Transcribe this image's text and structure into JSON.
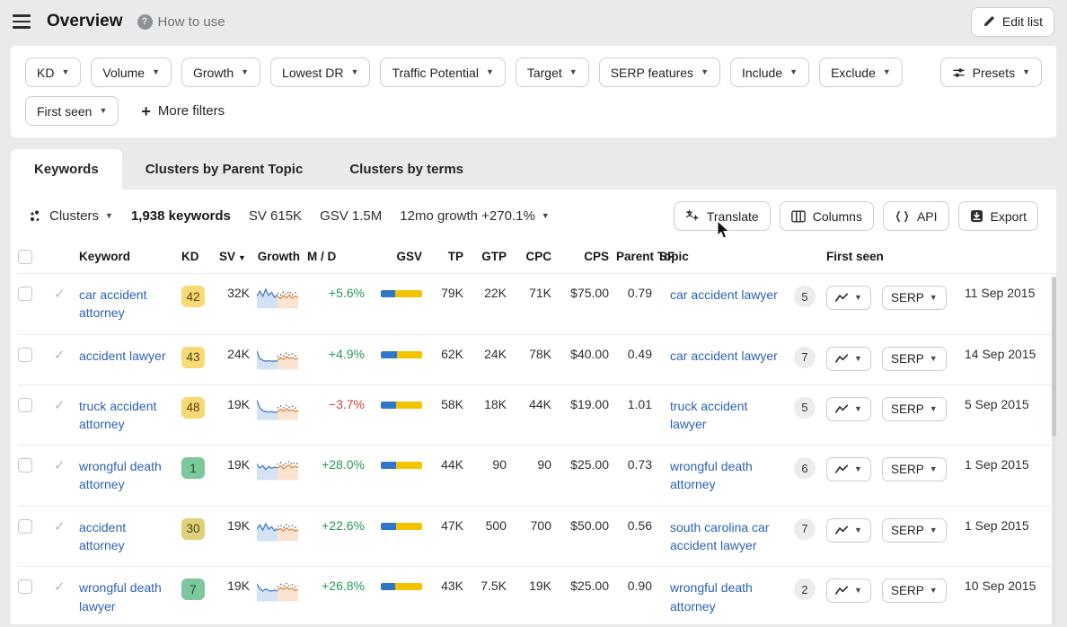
{
  "header": {
    "title": "Overview",
    "help_label": "How to use",
    "edit_list_label": "Edit list"
  },
  "filters": {
    "row1": [
      {
        "label": "KD"
      },
      {
        "label": "Volume"
      },
      {
        "label": "Growth"
      },
      {
        "label": "Lowest DR"
      },
      {
        "label": "Traffic Potential"
      },
      {
        "label": "Target"
      },
      {
        "label": "SERP features"
      },
      {
        "label": "Include"
      },
      {
        "label": "Exclude"
      }
    ],
    "presets_label": "Presets",
    "row2": [
      {
        "label": "First seen"
      }
    ],
    "more_filters_label": "More filters"
  },
  "tabs": [
    {
      "label": "Keywords",
      "active": true
    },
    {
      "label": "Clusters by Parent Topic",
      "active": false
    },
    {
      "label": "Clusters by terms",
      "active": false
    }
  ],
  "toolbar": {
    "clusters_label": "Clusters",
    "keywords_count": "1,938 keywords",
    "sv_total": "SV 615K",
    "gsv_total": "GSV 1.5M",
    "growth_12mo": "12mo growth +270.1%",
    "actions": [
      {
        "label": "Translate",
        "icon": "translate-icon"
      },
      {
        "label": "Columns",
        "icon": "columns-icon"
      },
      {
        "label": "API",
        "icon": "api-icon"
      },
      {
        "label": "Export",
        "icon": "export-icon"
      }
    ]
  },
  "table": {
    "serp_label": "SERP",
    "columns": [
      {
        "label": "Keyword",
        "align": "left"
      },
      {
        "label": "KD",
        "align": "left"
      },
      {
        "label": "SV",
        "align": "left",
        "sort": true
      },
      {
        "label": "Growth",
        "align": "right"
      },
      {
        "label": "M / D",
        "align": "left"
      },
      {
        "label": "GSV",
        "align": "right"
      },
      {
        "label": "TP",
        "align": "right"
      },
      {
        "label": "GTP",
        "align": "right"
      },
      {
        "label": "CPC",
        "align": "right"
      },
      {
        "label": "CPS",
        "align": "right"
      },
      {
        "label": "Parent Topic",
        "align": "left"
      },
      {
        "label": "SF",
        "align": "left"
      },
      {
        "label": "",
        "align": "left"
      },
      {
        "label": "First seen",
        "align": "left"
      }
    ],
    "rows": [
      {
        "keyword": "car accident attorney",
        "kd": "42",
        "kd_level": "yellow",
        "sv": "32K",
        "growth": "+5.6%",
        "growth_dir": "up",
        "md": [
          34,
          66
        ],
        "gsv": "79K",
        "tp": "22K",
        "gtp": "71K",
        "cpc": "$75.00",
        "cps": "0.79",
        "parent_topic": "car accident lawyer",
        "sf": "5",
        "first_seen": "11 Sep 2015",
        "spark_blue": [
          0.5,
          0.78,
          0.5,
          0.88,
          0.55,
          0.72,
          0.45,
          0.6
        ],
        "spark_orange": [
          0.5,
          0.38,
          0.55,
          0.42,
          0.58,
          0.4,
          0.52,
          0.44
        ]
      },
      {
        "keyword": "accident lawyer",
        "kd": "43",
        "kd_level": "yellow",
        "sv": "24K",
        "growth": "+4.9%",
        "growth_dir": "up",
        "md": [
          40,
          60
        ],
        "gsv": "62K",
        "tp": "24K",
        "gtp": "78K",
        "cpc": "$40.00",
        "cps": "0.49",
        "parent_topic": "car accident lawyer",
        "sf": "7",
        "first_seen": "14 Sep 2015",
        "spark_blue": [
          0.85,
          0.45,
          0.35,
          0.3,
          0.33,
          0.3,
          0.32,
          0.3
        ],
        "spark_orange": [
          0.35,
          0.48,
          0.4,
          0.55,
          0.45,
          0.5,
          0.42,
          0.46
        ]
      },
      {
        "keyword": "truck accident attorney",
        "kd": "48",
        "kd_level": "yellow",
        "sv": "19K",
        "growth": "−3.7%",
        "growth_dir": "down",
        "md": [
          36,
          64
        ],
        "gsv": "58K",
        "tp": "18K",
        "gtp": "44K",
        "cpc": "$19.00",
        "cps": "1.01",
        "parent_topic": "truck accident lawyer",
        "sf": "5",
        "first_seen": "5 Sep 2015",
        "spark_blue": [
          0.9,
          0.5,
          0.35,
          0.3,
          0.28,
          0.3,
          0.26,
          0.28
        ],
        "spark_orange": [
          0.3,
          0.42,
          0.32,
          0.45,
          0.35,
          0.4,
          0.3,
          0.36
        ]
      },
      {
        "keyword": "wrongful death attorney",
        "kd": "1",
        "kd_level": "green",
        "sv": "19K",
        "growth": "+28.0%",
        "growth_dir": "up",
        "md": [
          36,
          64
        ],
        "gsv": "44K",
        "tp": "90",
        "gtp": "90",
        "cpc": "$25.00",
        "cps": "0.73",
        "parent_topic": "wrongful death attorney",
        "sf": "6",
        "first_seen": "1 Sep 2015",
        "spark_blue": [
          0.72,
          0.5,
          0.62,
          0.42,
          0.58,
          0.48,
          0.55,
          0.5
        ],
        "spark_orange": [
          0.5,
          0.62,
          0.45,
          0.58,
          0.65,
          0.5,
          0.6,
          0.52
        ]
      },
      {
        "keyword": "accident attorney",
        "kd": "30",
        "kd_level": "olive",
        "sv": "19K",
        "growth": "+22.6%",
        "growth_dir": "up",
        "md": [
          36,
          64
        ],
        "gsv": "47K",
        "tp": "500",
        "gtp": "700",
        "cpc": "$50.00",
        "cps": "0.56",
        "parent_topic": "south carolina car accident lawyer",
        "sf": "7",
        "first_seen": "1 Sep 2015",
        "spark_blue": [
          0.5,
          0.72,
          0.45,
          0.78,
          0.5,
          0.62,
          0.42,
          0.52
        ],
        "spark_orange": [
          0.45,
          0.52,
          0.4,
          0.56,
          0.45,
          0.5,
          0.4,
          0.46
        ]
      },
      {
        "keyword": "wrongful death lawyer",
        "kd": "7",
        "kd_level": "green",
        "sv": "19K",
        "growth": "+26.8%",
        "growth_dir": "up",
        "md": [
          34,
          66
        ],
        "gsv": "43K",
        "tp": "7.5K",
        "gtp": "19K",
        "cpc": "$25.00",
        "cps": "0.90",
        "parent_topic": "wrongful death attorney",
        "sf": "2",
        "first_seen": "10 Sep 2015",
        "spark_blue": [
          0.78,
          0.55,
          0.4,
          0.52,
          0.44,
          0.4,
          0.46,
          0.4
        ],
        "spark_orange": [
          0.45,
          0.58,
          0.5,
          0.62,
          0.5,
          0.56,
          0.44,
          0.5
        ]
      }
    ]
  },
  "colors": {
    "positive": "#27995a",
    "negative": "#d13f3f",
    "link": "#2b62b5",
    "md_mobile": "#2d76c9",
    "md_desktop": "#f3c300",
    "spark_blue_line": "#4a7fc9",
    "spark_blue_fill": "#d4e2f4",
    "spark_orange_line": "#e2873a",
    "spark_orange_fill": "#f9e4d2",
    "kd_palette": {
      "yellow": {
        "bg": "#f7da74",
        "text": "#55430f"
      },
      "olive": {
        "bg": "#ddd17a",
        "text": "#4a430f"
      },
      "green": {
        "bg": "#7cc79b",
        "text": "#1f4d34"
      }
    }
  }
}
